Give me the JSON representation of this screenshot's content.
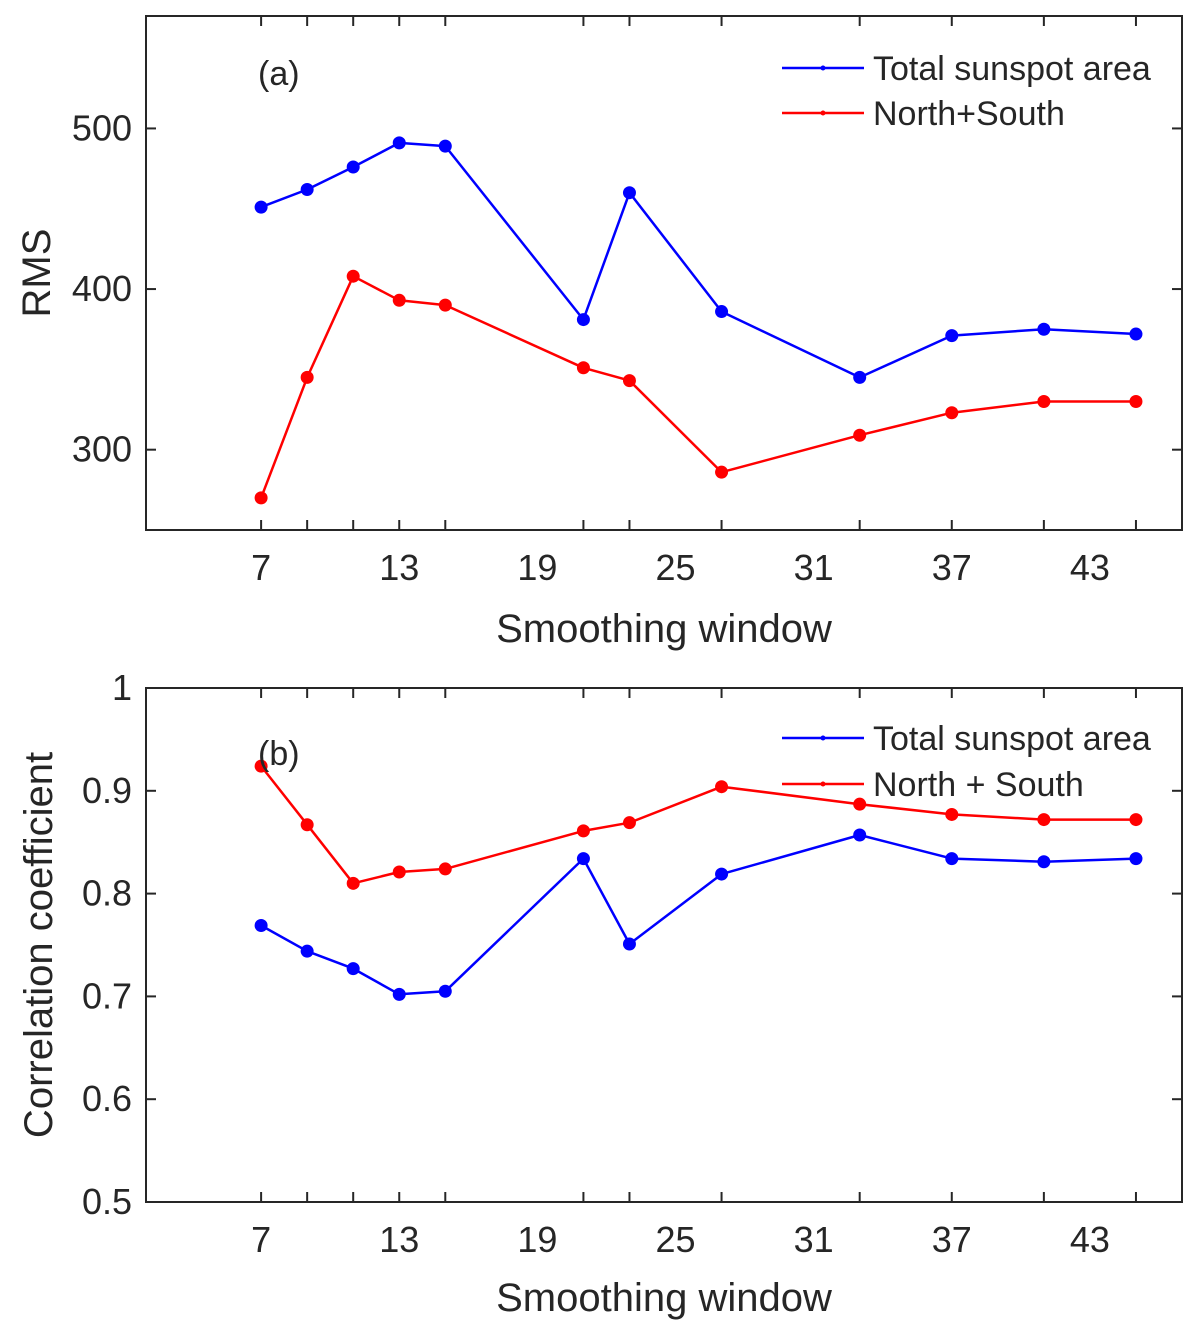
{
  "chart_data": [
    {
      "type": "line",
      "panel_label": "(a)",
      "xlabel": "Smoothing window",
      "ylabel": "RMS",
      "xlim": [
        2,
        47
      ],
      "ylim": [
        250,
        570
      ],
      "xticks": [
        7,
        13,
        19,
        25,
        31,
        37,
        43
      ],
      "yticks": [
        300,
        400,
        500
      ],
      "x": [
        7,
        9,
        11,
        13,
        15,
        21,
        23,
        27,
        33,
        37,
        41,
        45
      ],
      "series": [
        {
          "name": "Total sunspot area",
          "color": "#0000ff",
          "values": [
            451,
            462,
            476,
            491,
            489,
            381,
            460,
            386,
            345,
            371,
            375,
            372
          ]
        },
        {
          "name": "North+South",
          "color": "#ff0000",
          "values": [
            270,
            345,
            408,
            393,
            390,
            351,
            343,
            286,
            309,
            323,
            330,
            330
          ]
        }
      ],
      "legend_position": "top-right"
    },
    {
      "type": "line",
      "panel_label": "(b)",
      "xlabel": "Smoothing window",
      "ylabel": "Correlation coefficient",
      "xlim": [
        2,
        47
      ],
      "ylim": [
        0.5,
        1
      ],
      "xticks": [
        7,
        13,
        19,
        25,
        31,
        37,
        43
      ],
      "yticks": [
        0.5,
        0.6,
        0.7,
        0.8,
        0.9,
        1
      ],
      "ytick_labels": [
        "0.5",
        "0.6",
        "0.7",
        "0.8",
        "0.9",
        "1"
      ],
      "x": [
        7,
        9,
        11,
        13,
        15,
        21,
        23,
        27,
        33,
        37,
        41,
        45
      ],
      "series": [
        {
          "name": "Total sunspot area",
          "color": "#0000ff",
          "values": [
            0.769,
            0.744,
            0.727,
            0.702,
            0.705,
            0.834,
            0.751,
            0.819,
            0.857,
            0.834,
            0.831,
            0.834
          ]
        },
        {
          "name": "North + South",
          "color": "#ff0000",
          "values": [
            0.924,
            0.867,
            0.81,
            0.821,
            0.824,
            0.861,
            0.869,
            0.904,
            0.887,
            0.877,
            0.872,
            0.872
          ]
        }
      ],
      "legend_position": "top-right"
    }
  ]
}
